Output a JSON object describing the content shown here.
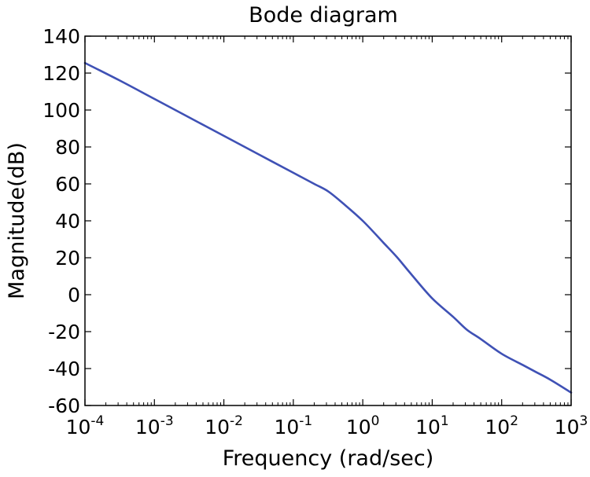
{
  "chart_data": {
    "type": "line",
    "title": "Bode diagram",
    "xlabel": "Frequency (rad/sec)",
    "ylabel": "Magnitude(dB)",
    "xscale": "log",
    "xlim": [
      0.0001,
      1000
    ],
    "ylim": [
      -60,
      140
    ],
    "grid": false,
    "x_ticks": [
      {
        "base": "10",
        "exp": "-4",
        "value": 0.0001
      },
      {
        "base": "10",
        "exp": "-3",
        "value": 0.001
      },
      {
        "base": "10",
        "exp": "-2",
        "value": 0.01
      },
      {
        "base": "10",
        "exp": "-1",
        "value": 0.1
      },
      {
        "base": "10",
        "exp": "0",
        "value": 1
      },
      {
        "base": "10",
        "exp": "1",
        "value": 10
      },
      {
        "base": "10",
        "exp": "2",
        "value": 100
      },
      {
        "base": "10",
        "exp": "3",
        "value": 1000
      }
    ],
    "y_ticks": [
      "-60",
      "-40",
      "-20",
      "0",
      "20",
      "40",
      "60",
      "80",
      "100",
      "120",
      "140"
    ],
    "series": [
      {
        "color": "#3f51b5",
        "x": [
          0.0001,
          0.000316,
          0.001,
          0.00316,
          0.01,
          0.0316,
          0.1,
          0.2,
          0.316,
          0.5,
          1,
          2,
          3.16,
          5,
          10,
          20,
          31.6,
          50,
          100,
          200,
          316,
          500,
          1000
        ],
        "y": [
          125.5,
          116,
          106,
          96,
          86,
          76,
          66,
          60,
          56,
          50,
          40,
          28,
          20,
          11,
          -2,
          -12,
          -19,
          -24,
          -32,
          -38,
          -42,
          -46,
          -53
        ]
      }
    ]
  }
}
